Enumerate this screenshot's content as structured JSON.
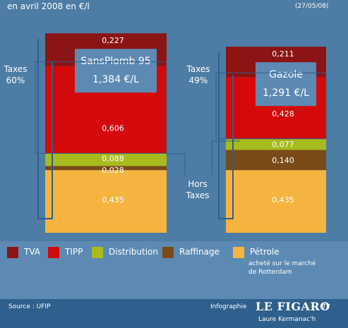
{
  "header": {
    "period": "en avril 2008 en €/l",
    "date": "(27/05/08)"
  },
  "colors": {
    "background": "#4d7ca4",
    "tva": "#8b1414",
    "tipp": "#d40a0a",
    "distribution": "#a7bb1c",
    "raffinage": "#7a4a18",
    "petrole": "#f5b43f",
    "footer": "#2f5f8c"
  },
  "chart_data": {
    "type": "bar",
    "stacked": true,
    "categories": [
      "SansPlomb 95",
      "Gazole"
    ],
    "totals": [
      "1,384 €/L",
      "1,291 €/L"
    ],
    "series": [
      {
        "name": "Pétrole",
        "values": [
          0.435,
          0.435
        ],
        "labels": [
          "0,435",
          "0,435"
        ]
      },
      {
        "name": "Raffinage",
        "values": [
          0.028,
          0.14
        ],
        "labels": [
          "0,028",
          "0,140"
        ]
      },
      {
        "name": "Distribution",
        "values": [
          0.088,
          0.077
        ],
        "labels": [
          "0,088",
          "0,077"
        ]
      },
      {
        "name": "TIPP",
        "values": [
          0.606,
          0.428
        ],
        "labels": [
          "0,606",
          "0,428"
        ]
      },
      {
        "name": "TVA",
        "values": [
          0.227,
          0.211
        ],
        "labels": [
          "0,227",
          "0,211"
        ]
      }
    ],
    "annotations": {
      "taxes_label": "Taxes",
      "taxes_pct": [
        "60%",
        "49%"
      ],
      "hors_taxes": [
        "Hors",
        "Taxes"
      ]
    }
  },
  "legend": {
    "items": [
      "TVA",
      "TIPP",
      "Distribution",
      "Raffinage",
      "Pétrole"
    ],
    "petrole_note": [
      "acheté sur le marché",
      "de Rotterdam"
    ]
  },
  "footer": {
    "source": "Source : UFIP",
    "infographie": "Infographie",
    "logo": "LE FIGARO",
    "logo_suffix": "fr",
    "author": "Laure Kermanac'h"
  }
}
